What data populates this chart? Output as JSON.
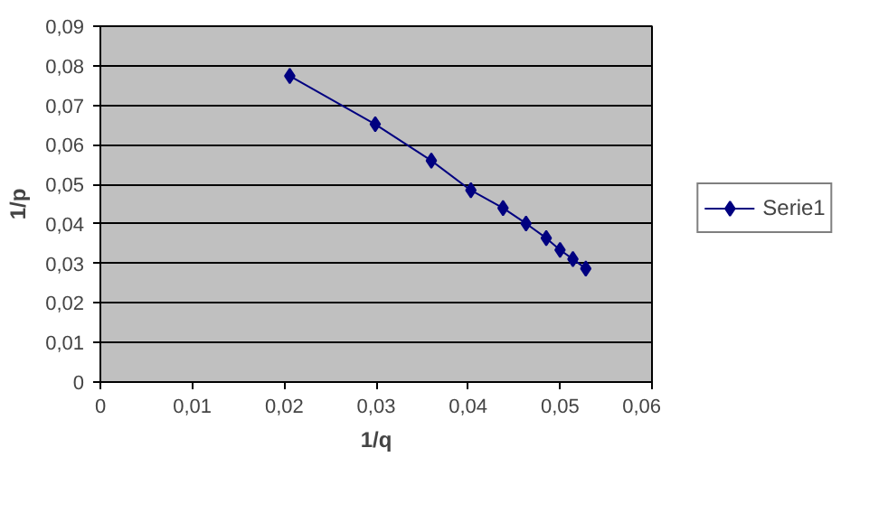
{
  "chart_data": {
    "type": "line",
    "xlabel": "1/q",
    "ylabel": "1/p",
    "x": [
      0.0206,
      0.0299,
      0.036,
      0.0403,
      0.0438,
      0.0463,
      0.0485,
      0.05,
      0.0514,
      0.0528
    ],
    "series": [
      {
        "name": "Serie1",
        "color": "#000080",
        "values": [
          0.0774,
          0.0652,
          0.056,
          0.0485,
          0.044,
          0.0401,
          0.0364,
          0.0334,
          0.0311,
          0.0287
        ]
      }
    ],
    "xlim": [
      0,
      0.06
    ],
    "ylim": [
      0,
      0.09
    ],
    "xticks": [
      {
        "value": 0,
        "label": "0"
      },
      {
        "value": 0.01,
        "label": "0,01"
      },
      {
        "value": 0.02,
        "label": "0,02"
      },
      {
        "value": 0.03,
        "label": "0,03"
      },
      {
        "value": 0.04,
        "label": "0,04"
      },
      {
        "value": 0.05,
        "label": "0,05"
      },
      {
        "value": 0.06,
        "label": "0,06"
      }
    ],
    "yticks": [
      {
        "value": 0,
        "label": "0"
      },
      {
        "value": 0.01,
        "label": "0,01"
      },
      {
        "value": 0.02,
        "label": "0,02"
      },
      {
        "value": 0.03,
        "label": "0,03"
      },
      {
        "value": 0.04,
        "label": "0,04"
      },
      {
        "value": 0.05,
        "label": "0,05"
      },
      {
        "value": 0.06,
        "label": "0,06"
      },
      {
        "value": 0.07,
        "label": "0,07"
      },
      {
        "value": 0.08,
        "label": "0,08"
      },
      {
        "value": 0.09,
        "label": "0,09"
      }
    ],
    "grid": "y",
    "legend": "right",
    "marker": "diamond",
    "line_style": "solid"
  }
}
